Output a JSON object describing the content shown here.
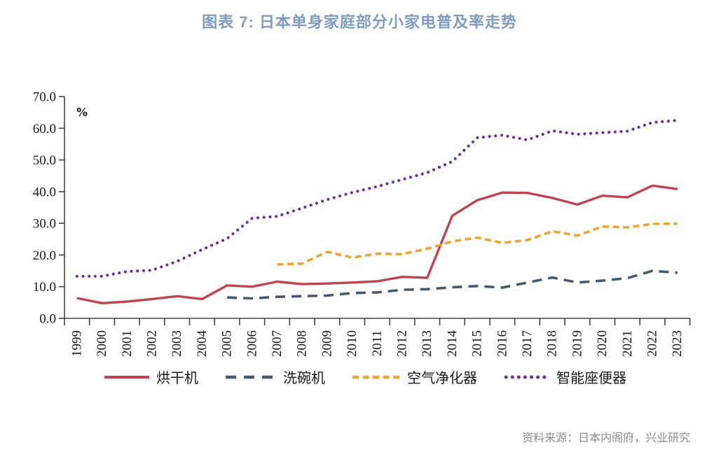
{
  "title": "图表 7: 日本单身家庭部分小家电普及率走势",
  "title_color": "#7e9cc4",
  "source": "资料来源：日本内阁府，兴业研究",
  "axis": {
    "unit_label": "%",
    "y_ticks": [
      "0.0",
      "10.0",
      "20.0",
      "30.0",
      "40.0",
      "50.0",
      "60.0",
      "70.0"
    ],
    "axis_color": "#404040",
    "label_color": "#1a1a1a"
  },
  "chart_data": {
    "type": "line",
    "title": "图表 7: 日本单身家庭部分小家电普及率走势",
    "xlabel": "",
    "ylabel": "%",
    "ylim": [
      0,
      70
    ],
    "ytick_step": 10,
    "grid": false,
    "legend_position": "bottom",
    "categories": [
      "1999",
      "2000",
      "2001",
      "2002",
      "2003",
      "2004",
      "2005",
      "2006",
      "2007",
      "2008",
      "2009",
      "2010",
      "2011",
      "2012",
      "2013",
      "2014",
      "2015",
      "2016",
      "2017",
      "2018",
      "2019",
      "2020",
      "2021",
      "2022",
      "2023"
    ],
    "series": [
      {
        "name": "烘干机",
        "color": "#c0434f",
        "style": "solid",
        "values": [
          6.4,
          4.8,
          5.3,
          6.1,
          7.0,
          6.1,
          10.4,
          10.0,
          11.6,
          10.8,
          11.0,
          11.3,
          11.7,
          13.1,
          12.8,
          32.4,
          37.3,
          39.7,
          39.6,
          38.0,
          35.9,
          38.7,
          38.2,
          41.9,
          40.8
        ]
      },
      {
        "name": "洗碗机",
        "color": "#47596e",
        "style": "dashed",
        "values": [
          null,
          null,
          null,
          null,
          null,
          null,
          6.6,
          6.3,
          6.8,
          7.0,
          7.2,
          8.0,
          8.2,
          9.0,
          9.2,
          9.8,
          10.2,
          9.7,
          11.3,
          12.9,
          11.3,
          11.9,
          12.7,
          15.0,
          14.4
        ]
      },
      {
        "name": "空气净化器",
        "color": "#f0a330",
        "style": "dashed-short",
        "values": [
          null,
          null,
          null,
          null,
          null,
          null,
          null,
          null,
          17.0,
          17.3,
          21.0,
          19.2,
          20.4,
          20.3,
          22.0,
          24.3,
          25.5,
          23.8,
          24.7,
          27.5,
          26.1,
          29.0,
          28.7,
          29.8,
          29.9
        ]
      },
      {
        "name": "智能座便器",
        "color": "#7030a0",
        "style": "dotted",
        "values": [
          13.3,
          13.3,
          14.8,
          15.2,
          18.0,
          21.7,
          25.2,
          31.6,
          32.2,
          34.8,
          37.5,
          39.7,
          41.6,
          43.8,
          46.0,
          49.5,
          57.0,
          57.8,
          56.3,
          59.2,
          58.1,
          58.6,
          59.1,
          61.8,
          62.5
        ]
      }
    ]
  }
}
